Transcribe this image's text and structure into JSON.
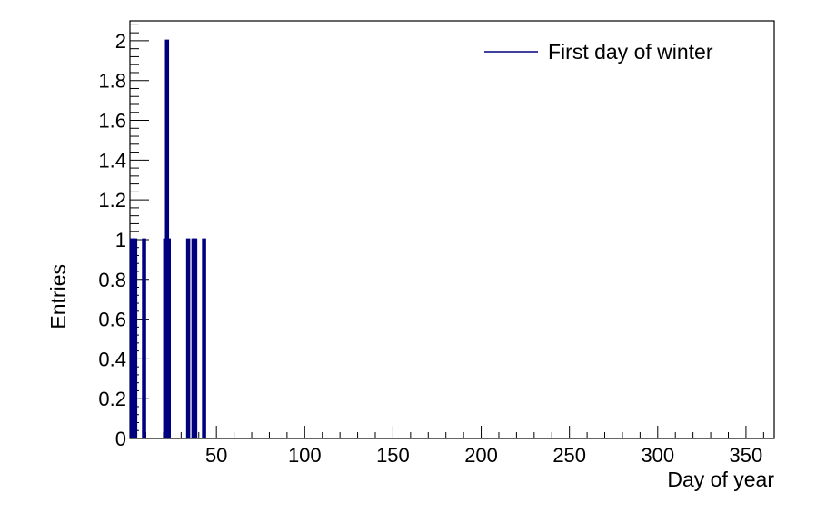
{
  "chart_data": {
    "type": "histogram",
    "title": "",
    "xlabel": "Day of year",
    "ylabel": "Entries",
    "xlim": [
      1,
      366
    ],
    "ylim": [
      0,
      2.1
    ],
    "x_ticks": [
      50,
      100,
      150,
      200,
      250,
      300,
      350
    ],
    "y_ticks": [
      0,
      0.2,
      0.4,
      0.6,
      0.8,
      1,
      1.2,
      1.4,
      1.6,
      1.8,
      2
    ],
    "legend_position": "top-right",
    "grid": false,
    "series": [
      {
        "name": "First day of winter",
        "color": "#00007f",
        "bins": [
          {
            "x": 2,
            "count": 1
          },
          {
            "x": 3,
            "count": 1
          },
          {
            "x": 4,
            "count": 1
          },
          {
            "x": 9,
            "count": 1
          },
          {
            "x": 21,
            "count": 1
          },
          {
            "x": 22,
            "count": 2
          },
          {
            "x": 23,
            "count": 1
          },
          {
            "x": 34,
            "count": 1
          },
          {
            "x": 37,
            "count": 1
          },
          {
            "x": 38,
            "count": 1
          },
          {
            "x": 43,
            "count": 1
          }
        ]
      }
    ]
  }
}
